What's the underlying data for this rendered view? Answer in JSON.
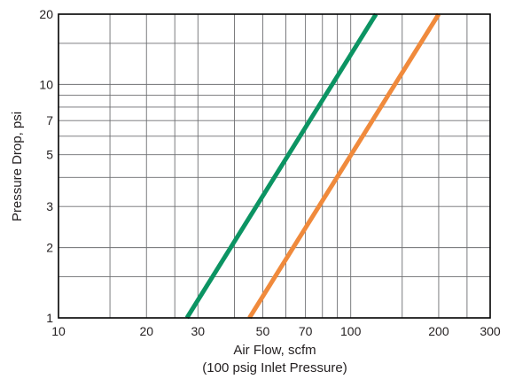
{
  "chart_data": {
    "type": "line",
    "xscale": "log",
    "yscale": "log",
    "xlim": [
      10,
      300
    ],
    "ylim": [
      1,
      20
    ],
    "xticks": [
      10,
      20,
      30,
      50,
      70,
      100,
      200,
      300
    ],
    "xtick_labels": [
      "10",
      "20",
      "30",
      "50",
      "70",
      "100",
      "200",
      "300"
    ],
    "yticks": [
      1,
      2,
      3,
      5,
      7,
      10,
      20
    ],
    "ytick_labels": [
      "1",
      "2",
      "3",
      "5",
      "7",
      "10",
      "20"
    ],
    "x_gridlines": [
      15,
      20,
      25,
      30,
      40,
      50,
      60,
      70,
      80,
      90,
      100,
      150,
      200,
      250
    ],
    "y_gridlines": [
      1.5,
      2,
      3,
      4,
      5,
      6,
      7,
      8,
      9,
      10,
      15
    ],
    "grid": true,
    "xlabel": "Air Flow, scfm",
    "xlabel_sub": "(100 psig Inlet Pressure)",
    "ylabel": "Pressure Drop, psi",
    "series": [
      {
        "color": "#0c9463",
        "x": [
          27.5,
          122
        ],
        "y": [
          1,
          20
        ]
      },
      {
        "color": "#f08a3c",
        "x": [
          45,
          200
        ],
        "y": [
          1,
          20
        ]
      }
    ]
  }
}
